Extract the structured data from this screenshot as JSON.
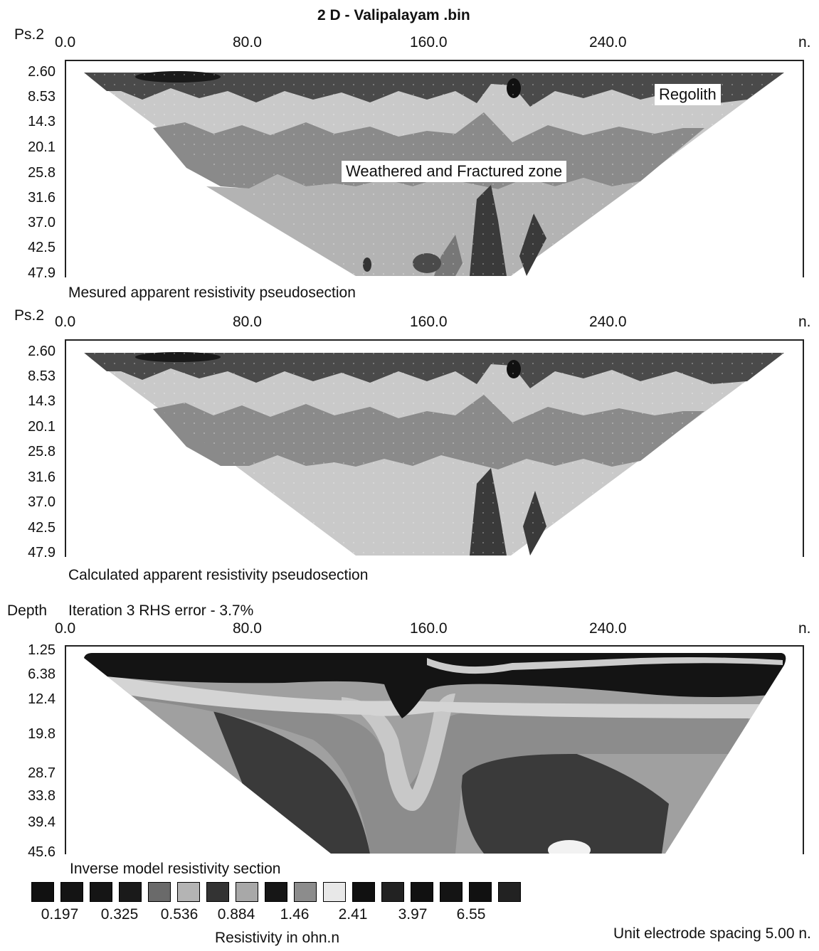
{
  "title": "2 D - Valipalayam .bin",
  "units_label": "n.",
  "panel1": {
    "ylabel": "Ps.2",
    "caption": "Mesured apparent resistivity pseudosection",
    "x_ticks": [
      "0.0",
      "80.0",
      "160.0",
      "240.0"
    ],
    "y_ticks": [
      "2.60",
      "8.53",
      "14.3",
      "20.1",
      "25.8",
      "31.6",
      "37.0",
      "42.5",
      "47.9"
    ],
    "annotations": {
      "regolith": "Regolith",
      "weathered": "Weathered and Fractured zone"
    }
  },
  "panel2": {
    "ylabel": "Ps.2",
    "caption": "Calculated apparent resistivity pseudosection",
    "x_ticks": [
      "0.0",
      "80.0",
      "160.0",
      "240.0"
    ],
    "y_ticks": [
      "2.60",
      "8.53",
      "14.3",
      "20.1",
      "25.8",
      "31.6",
      "37.0",
      "42.5",
      "47.9"
    ]
  },
  "panel3": {
    "ylabel": "Depth",
    "subtitle": "Iteration 3 RHS error - 3.7%",
    "caption": "Inverse model resistivity section",
    "x_ticks": [
      "0.0",
      "80.0",
      "160.0",
      "240.0"
    ],
    "y_ticks": [
      "1.25",
      "6.38",
      "12.4",
      "19.8",
      "28.7",
      "33.8",
      "39.4",
      "45.6"
    ]
  },
  "legend": {
    "values": [
      "0.197",
      "0.325",
      "0.536",
      "0.884",
      "1.46",
      "2.41",
      "3.97",
      "6.55"
    ],
    "swatch_colors": [
      "#111111",
      "#141414",
      "#151515",
      "#1a1a1a",
      "#6a6a6a",
      "#b4b4b4",
      "#333333",
      "#a8a8a8",
      "#161616",
      "#8c8c8c",
      "#e8e8e8",
      "#111111",
      "#222222",
      "#111111",
      "#141414",
      "#111111",
      "#222222"
    ],
    "xlabel": "Resistivity in ohn.n"
  },
  "footer": "Unit electrode spacing 5.00 n.",
  "colors": {
    "dark": "#2a2a2a",
    "darker": "#111111",
    "mid": "#7a7a7a",
    "light": "#b9b9b9",
    "lighter": "#d6d6d6"
  }
}
